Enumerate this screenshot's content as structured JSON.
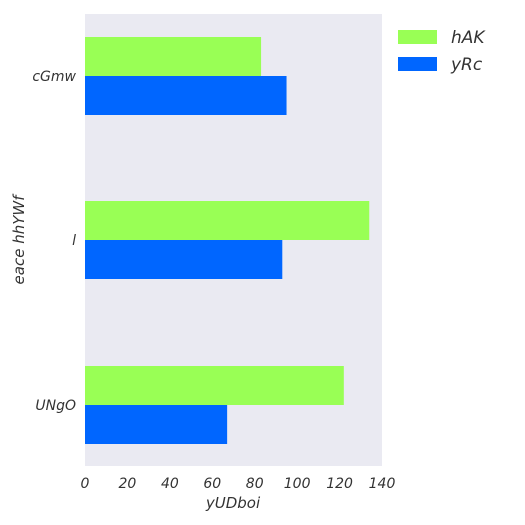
{
  "chart_data": {
    "type": "bar",
    "orientation": "horizontal",
    "categories": [
      "cGmw",
      "l",
      "UNgO"
    ],
    "series": [
      {
        "name": "hAK",
        "values": [
          83,
          134,
          122
        ],
        "color": "#99ff55"
      },
      {
        "name": "yRc",
        "values": [
          95,
          93,
          67
        ],
        "color": "#0066ff"
      }
    ],
    "xlabel": "yUDboi",
    "ylabel": "eace hhYWf",
    "xlim": [
      0,
      140
    ],
    "xticks": [
      "0",
      "20",
      "40",
      "60",
      "80",
      "100",
      "120",
      "140"
    ],
    "grid": false,
    "legend_position": "top-right",
    "background_color": "#eaeaf2"
  }
}
